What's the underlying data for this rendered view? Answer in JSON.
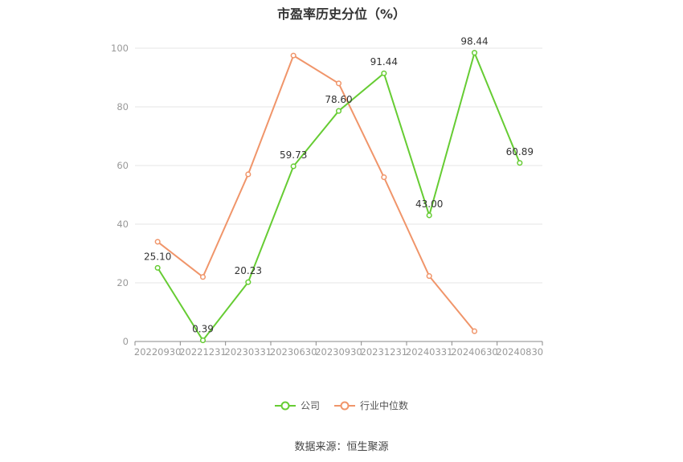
{
  "chart_data": {
    "type": "line",
    "title": "市盈率历史分位（%）",
    "categories": [
      "20220930",
      "20221231",
      "20230331",
      "20230630",
      "20230930",
      "20231231",
      "20240331",
      "20240630",
      "20240830"
    ],
    "series": [
      {
        "name": "公司",
        "color": "#66cc33",
        "values": [
          25.1,
          0.39,
          20.23,
          59.73,
          78.6,
          91.44,
          43.0,
          98.44,
          60.89
        ],
        "labels": [
          "25.10",
          "0.39",
          "20.23",
          "59.73",
          "78.60",
          "91.44",
          "43.00",
          "98.44",
          "60.89"
        ]
      },
      {
        "name": "行业中位数",
        "color": "#f0956a",
        "values": [
          34,
          22,
          57,
          97.5,
          88,
          56,
          22.3,
          3.5,
          null
        ]
      }
    ],
    "yticks": [
      "0",
      "20",
      "40",
      "60",
      "80",
      "100"
    ],
    "ylim": [
      0,
      100
    ],
    "grid": true,
    "legend": "bottom"
  },
  "source": "数据来源：恒生聚源"
}
